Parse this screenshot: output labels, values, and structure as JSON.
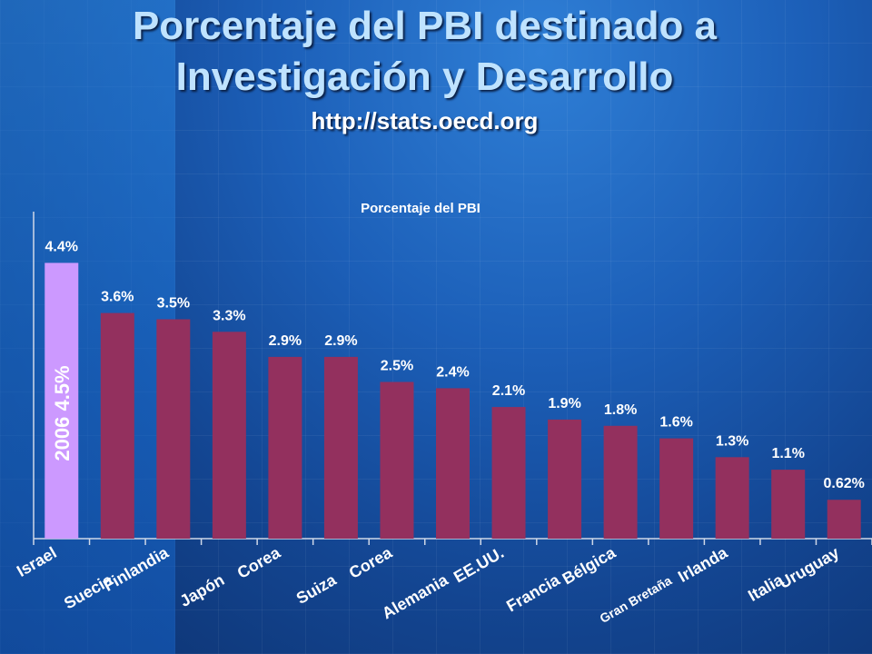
{
  "slide": {
    "title_line1": "Porcentaje del PBI destinado a",
    "title_line2": "Investigación y Desarrollo",
    "source": "http://stats.oecd.org"
  },
  "chart_data": {
    "type": "bar",
    "title": "Porcentaje del PBI",
    "categories": [
      "Israel",
      "Suecia",
      "Finlandia",
      "Japón",
      "Corea",
      "Suiza",
      "Corea",
      "Alemania",
      "EE.UU.",
      "Francia",
      "Bélgica",
      "Gran Bretaña",
      "Irlanda",
      "Italia",
      "Uruguay"
    ],
    "values": [
      4.4,
      3.6,
      3.5,
      3.3,
      2.9,
      2.9,
      2.5,
      2.4,
      2.1,
      1.9,
      1.8,
      1.6,
      1.3,
      1.1,
      0.62
    ],
    "value_labels": [
      "4.4%",
      "3.6%",
      "3.5%",
      "3.3%",
      "2.9%",
      "2.9%",
      "2.5%",
      "2.4%",
      "2.1%",
      "1.9%",
      "1.8%",
      "1.6%",
      "1.3%",
      "1.1%",
      "0.62%"
    ],
    "ylim": [
      0,
      5
    ],
    "highlight_index": 0,
    "highlight_annotation": "2006  4.5%",
    "colors": {
      "bar": "#93305e",
      "highlight": "#cc99ff",
      "label": "#ffffff"
    }
  }
}
